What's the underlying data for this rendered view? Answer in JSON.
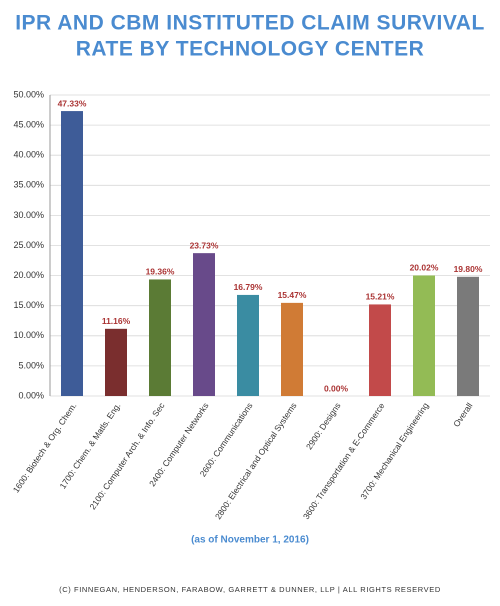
{
  "chart_data": {
    "type": "bar",
    "title": [
      "IPR AND CBM INSTITUTED CLAIM SURVIVAL",
      "RATE BY TECHNOLOGY CENTER"
    ],
    "categories": [
      "1600: Biotech & Org. Chem.",
      "1700: Chem. & Matls. Eng.",
      "2100: Computer Arch. & Info. Sec",
      "2400: Computer Networks",
      "2600: Communications",
      "2800: Electrical and Optical Systems",
      "2900: Designs",
      "3600: Transportation & E-Commerce",
      "3700: Mechanical Engineering",
      "Overall"
    ],
    "values": [
      47.33,
      11.16,
      19.36,
      23.73,
      16.79,
      15.47,
      0,
      15.21,
      20.02,
      19.8
    ],
    "value_labels": [
      "47.33%",
      "11.16%",
      "19.36%",
      "23.73%",
      "16.79%",
      "15.47%",
      "0.00%",
      "15.21%",
      "20.02%",
      "19.80%"
    ],
    "colors": [
      "#3e5c98",
      "#7a2e2e",
      "#5b7b35",
      "#684a8a",
      "#3a8ca2",
      "#d07b35",
      "#888888",
      "#c24a4a",
      "#93bb55",
      "#7a7a7a"
    ],
    "ylim": [
      0,
      50
    ],
    "yticks": [
      {
        "value": 0,
        "label": "0.00%"
      },
      {
        "value": 5,
        "label": "5.00%"
      },
      {
        "value": 10,
        "label": "10.00%"
      },
      {
        "value": 15,
        "label": "15.00%"
      },
      {
        "value": 20,
        "label": "20.00%"
      },
      {
        "value": 25,
        "label": "25.00%"
      },
      {
        "value": 30,
        "label": "30.00%"
      },
      {
        "value": 35,
        "label": "35.00%"
      },
      {
        "value": 40,
        "label": "40.00%"
      },
      {
        "value": 45,
        "label": "45.00%"
      },
      {
        "value": 50,
        "label": "50.00%"
      }
    ],
    "grid": true,
    "note": "(as of November 1, 2016)",
    "footer": "(C) FINNEGAN, HENDERSON, FARABOW, GARRETT & DUNNER, LLP | ALL RIGHTS RESERVED"
  }
}
